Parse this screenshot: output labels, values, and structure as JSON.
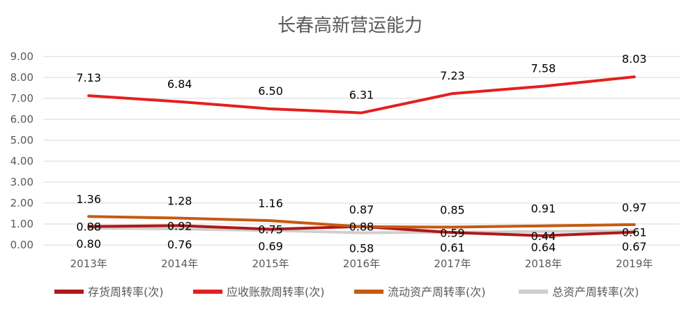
{
  "chart_data": {
    "type": "line",
    "title": "长春高新营运能力",
    "categories": [
      "2013年",
      "2014年",
      "2015年",
      "2016年",
      "2017年",
      "2018年",
      "2019年"
    ],
    "ylim": [
      0,
      9
    ],
    "yticks": [
      "0.00",
      "1.00",
      "2.00",
      "3.00",
      "4.00",
      "5.00",
      "6.00",
      "7.00",
      "8.00",
      "9.00"
    ],
    "grid": true,
    "legend_position": "bottom",
    "series": [
      {
        "name": "存货周转率(次)",
        "color": "#b01818",
        "values": [
          0.88,
          0.92,
          0.75,
          0.88,
          0.59,
          0.44,
          0.61
        ],
        "labels": [
          "0.88",
          "0.92",
          "0.75",
          "0.88",
          "0.59",
          "0.44",
          "0.61"
        ]
      },
      {
        "name": "应收账款周转率(次)",
        "color": "#e41f1f",
        "values": [
          7.13,
          6.84,
          6.5,
          6.31,
          7.23,
          7.58,
          8.03
        ],
        "labels": [
          "7.13",
          "6.84",
          "6.50",
          "6.31",
          "7.23",
          "7.58",
          "8.03"
        ]
      },
      {
        "name": "流动资产周转率(次)",
        "color": "#c55a11",
        "values": [
          1.36,
          1.28,
          1.16,
          0.87,
          0.85,
          0.91,
          0.97
        ],
        "labels": [
          "1.36",
          "1.28",
          "1.16",
          "0.87",
          "0.85",
          "0.91",
          "0.97"
        ]
      },
      {
        "name": "总资产周转率(次)",
        "color": "#d0cece",
        "values": [
          0.8,
          0.76,
          0.69,
          0.58,
          0.61,
          0.64,
          0.67
        ],
        "labels": [
          "0.80",
          "0.76",
          "0.69",
          "0.58",
          "0.61",
          "0.64",
          "0.67"
        ]
      }
    ]
  }
}
